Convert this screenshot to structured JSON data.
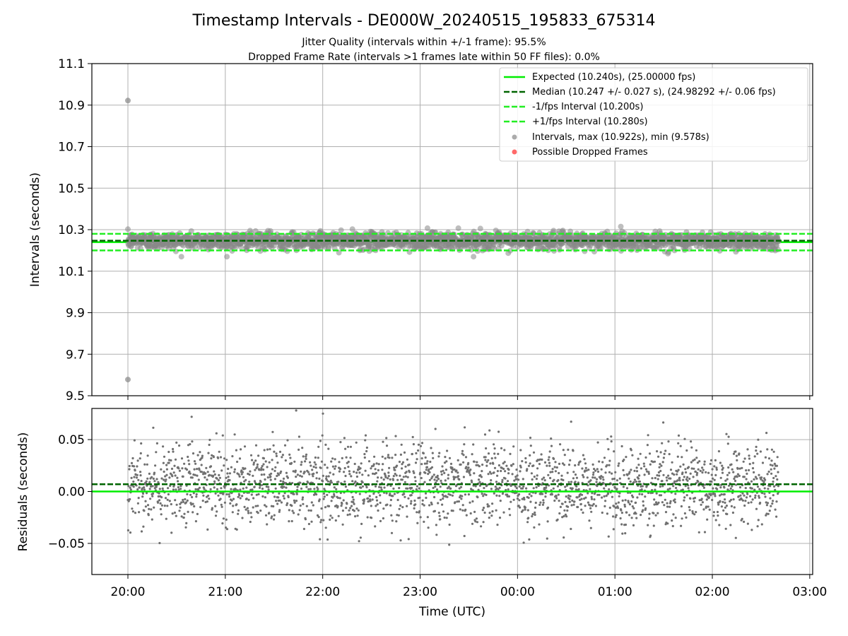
{
  "figure": {
    "title": "Timestamp Intervals - DE000W_20240515_195833_675314",
    "subtitle_line1": "Jitter Quality (intervals within +/-1 frame): 95.5%",
    "subtitle_line2": "Dropped Frame Rate (intervals >1 frames late within 50 FF files): 0.0%"
  },
  "colors": {
    "expected": "#00ee00",
    "median": "#006400",
    "fps_band": "#22ee22",
    "points": "#888888",
    "dropped": "#ff4444",
    "grid": "#b0b0b0"
  },
  "legend": {
    "location": "upper right",
    "entries": [
      {
        "label": "Expected (10.240s), (25.00000 fps)",
        "style": "solid-green"
      },
      {
        "label": "Median (10.247 +/- 0.027 s), (24.98292 +/- 0.06 fps)",
        "style": "dashed-darkgreen"
      },
      {
        "label": "-1/fps Interval (10.200s)",
        "style": "dashed-green"
      },
      {
        "label": "+1/fps Interval (10.280s)",
        "style": "dashed-green"
      },
      {
        "label": "Intervals, max (10.922s), min (9.578s)",
        "style": "grey-dot"
      },
      {
        "label": "Possible Dropped Frames",
        "style": "red-dot"
      }
    ]
  },
  "chart_data": [
    {
      "type": "scatter",
      "panel": "intervals",
      "ylabel": "Intervals (seconds)",
      "ylim": [
        9.5,
        11.1
      ],
      "yticks": [
        "9.5",
        "9.7",
        "9.9",
        "10.1",
        "10.3",
        "10.5",
        "10.7",
        "10.9",
        "11.1"
      ],
      "xlim_hours": [
        19.63,
        27.03
      ],
      "grid": true,
      "reference_lines": {
        "expected": 10.24,
        "median": 10.247,
        "minus_1fps": 10.2,
        "plus_1fps": 10.28
      },
      "x_range_hours": [
        20.0,
        26.68
      ],
      "n_points": 2360,
      "center": 10.247,
      "std": 0.02,
      "outliers": [
        {
          "x_hours": 20.0,
          "y": 10.922
        },
        {
          "x_hours": 20.0,
          "y": 9.578
        }
      ],
      "dropped_frames": []
    },
    {
      "type": "scatter",
      "panel": "residuals",
      "ylabel": "Residuals (seconds)",
      "xlabel": "Time (UTC)",
      "ylim": [
        -0.08,
        0.08
      ],
      "yticks": [
        "−0.05",
        "0.00",
        "0.05"
      ],
      "ytick_values": [
        -0.05,
        0.0,
        0.05
      ],
      "xticks": [
        "20:00",
        "21:00",
        "22:00",
        "23:00",
        "00:00",
        "01:00",
        "02:00",
        "03:00"
      ],
      "xtick_hours": [
        20,
        21,
        22,
        23,
        24,
        25,
        26,
        27
      ],
      "xlim_hours": [
        19.63,
        27.03
      ],
      "grid": true,
      "reference_lines": {
        "zero": 0.0,
        "median_offset": 0.007
      },
      "x_range_hours": [
        20.0,
        26.68
      ],
      "n_points": 2360,
      "center": 0.007,
      "std": 0.02
    }
  ]
}
